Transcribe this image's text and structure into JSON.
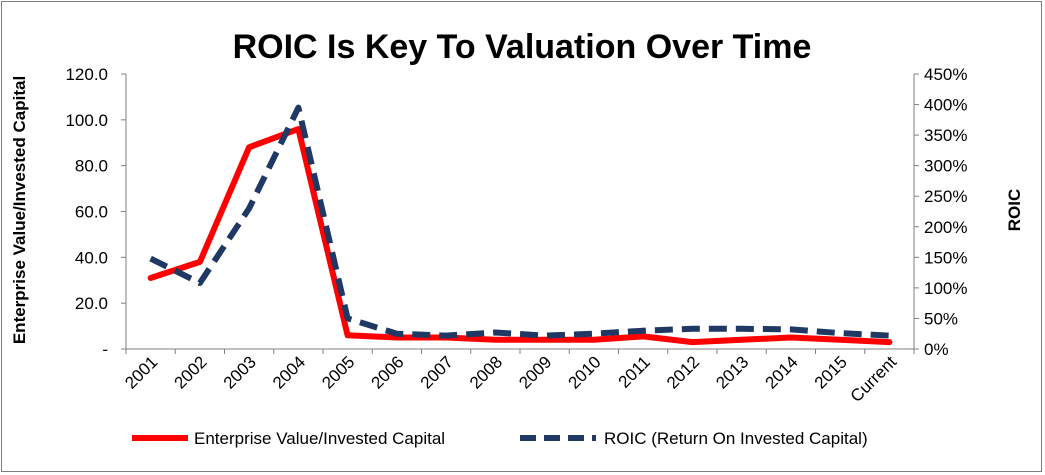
{
  "chart_data": {
    "type": "line",
    "title": "ROIC Is Key To Valuation Over Time",
    "categories": [
      "2001",
      "2002",
      "2003",
      "2004",
      "2005",
      "2006",
      "2007",
      "2008",
      "2009",
      "2010",
      "2011",
      "2012",
      "2013",
      "2014",
      "2015",
      "Current"
    ],
    "y_left": {
      "label": "Enterprise Value/Invested Capital",
      "range": [
        0,
        120
      ],
      "ticks": [
        "-",
        "20.0",
        "40.0",
        "60.0",
        "80.0",
        "100.0",
        "120.0"
      ]
    },
    "y_right": {
      "label": "ROIC",
      "range": [
        0,
        450
      ],
      "ticks": [
        "0%",
        "50%",
        "100%",
        "150%",
        "200%",
        "250%",
        "300%",
        "350%",
        "400%",
        "450%"
      ]
    },
    "series": [
      {
        "name": "Enterprise Value/Invested Capital",
        "axis": "left",
        "color": "#ff0000",
        "style": "solid",
        "values": [
          31.0,
          38.0,
          88.0,
          96.0,
          6.0,
          5.0,
          5.0,
          4.0,
          4.0,
          4.0,
          5.5,
          3.0,
          4.0,
          5.0,
          4.0,
          3.0
        ]
      },
      {
        "name": "ROIC (Return On Invested Capital)",
        "axis": "right",
        "color": "#1f3864",
        "style": "dashed",
        "values": [
          148,
          108,
          230,
          395,
          50,
          25,
          22,
          27,
          22,
          25,
          30,
          33,
          33,
          32,
          26,
          22
        ]
      }
    ],
    "grid": false,
    "legend_position": "bottom"
  }
}
